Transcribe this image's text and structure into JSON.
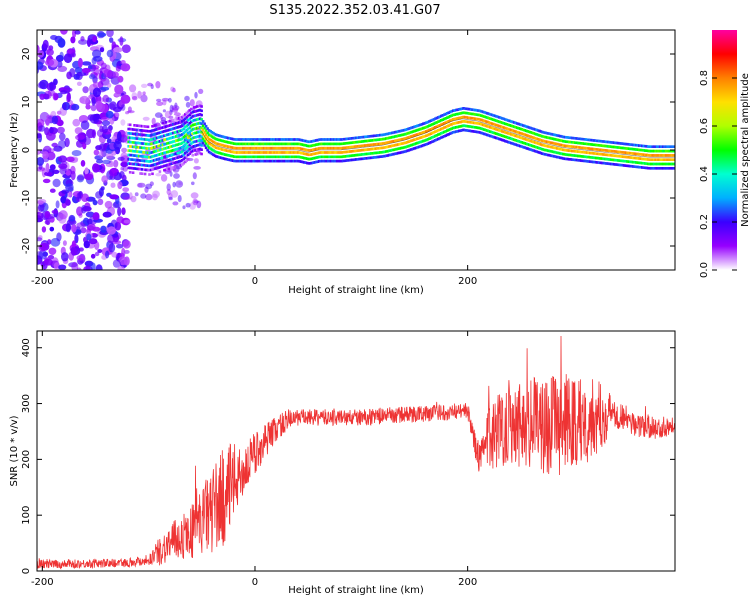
{
  "title": "S135.2022.352.03.41.G07",
  "chart_data": [
    {
      "type": "heatmap",
      "xlabel": "Height of straight line (km)",
      "ylabel": "Frequency (Hz)",
      "xlim": [
        -205,
        395
      ],
      "ylim": [
        -25,
        25
      ],
      "xticks": [
        -200,
        0,
        200
      ],
      "yticks": [
        -20,
        -10,
        0,
        10,
        20
      ],
      "grid": false,
      "colorbar": {
        "label": "Normalized spectral amplitude",
        "range": [
          0,
          1
        ],
        "ticks": [
          "0.0",
          "0.2",
          "0.4",
          "0.6",
          "0.8"
        ],
        "colormap": [
          "#ffffff",
          "#9600ff",
          "#3a00ff",
          "#00b0ff",
          "#00ffd0",
          "#00ff00",
          "#b0ff00",
          "#ffe000",
          "#ff8000",
          "#ff0000",
          "#ff00a0"
        ]
      },
      "ridge": {
        "x": [
          -120,
          -100,
          -85,
          -70,
          -60,
          -52,
          -45,
          -38,
          -30,
          -20,
          0,
          20,
          40,
          50,
          60,
          80,
          100,
          120,
          140,
          160,
          175,
          185,
          195,
          210,
          230,
          250,
          270,
          290,
          310,
          330,
          350,
          370,
          395
        ],
        "y": [
          0.5,
          0,
          1,
          2,
          4,
          4.5,
          2,
          1,
          0.5,
          0,
          0,
          0,
          0,
          -0.5,
          0,
          0,
          0.5,
          1,
          2,
          3.5,
          5,
          6,
          6.5,
          6,
          4.5,
          3,
          1.5,
          0.5,
          0,
          -0.5,
          -1,
          -1.5,
          -1.5
        ]
      },
      "noise_region_x": [
        -205,
        -120
      ]
    },
    {
      "type": "line",
      "xlabel": "Height of straight line (km)",
      "ylabel": "SNR (10 * v/v)",
      "xlim": [
        -205,
        395
      ],
      "ylim": [
        0,
        430
      ],
      "xticks": [
        -200,
        0,
        200
      ],
      "yticks": [
        0,
        100,
        200,
        300,
        400
      ],
      "grid": false,
      "color": "#ee3333",
      "series": [
        {
          "x": [
            -205,
            -180,
            -160,
            -140,
            -120,
            -100,
            -90,
            -80,
            -70,
            -60,
            -50,
            -40,
            -30,
            -20,
            -15,
            -10,
            0,
            10,
            20,
            30,
            40,
            60,
            80,
            100,
            120,
            140,
            160,
            180,
            200,
            210,
            215,
            220,
            240,
            260,
            280,
            300,
            320,
            340,
            350,
            360,
            380,
            395
          ],
          "values": [
            12,
            12,
            13,
            14,
            15,
            20,
            35,
            50,
            60,
            70,
            90,
            110,
            130,
            160,
            170,
            180,
            210,
            235,
            255,
            270,
            275,
            275,
            275,
            275,
            278,
            280,
            282,
            285,
            288,
            200,
            215,
            240,
            270,
            265,
            260,
            265,
            275,
            285,
            270,
            260,
            255,
            265
          ],
          "spread": [
            8,
            8,
            8,
            8,
            8,
            10,
            25,
            35,
            40,
            50,
            60,
            80,
            90,
            70,
            50,
            45,
            40,
            30,
            25,
            20,
            15,
            15,
            15,
            15,
            15,
            15,
            15,
            15,
            15,
            25,
            30,
            60,
            80,
            85,
            90,
            90,
            70,
            30,
            25,
            20,
            20,
            18
          ]
        }
      ]
    }
  ]
}
